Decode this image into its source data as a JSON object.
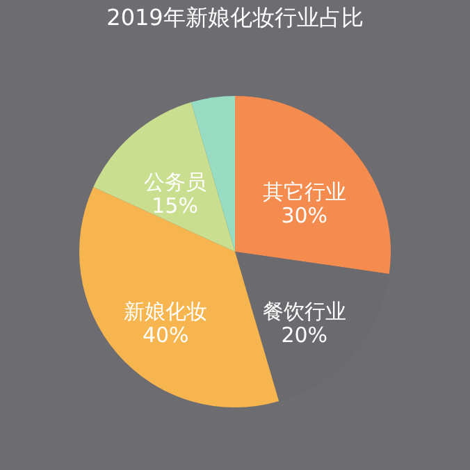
{
  "chart_data": {
    "type": "pie",
    "title": "2019年新娘化妆行业占比",
    "categories": [
      "其它行业",
      "餐饮行业",
      "新娘化妆",
      "公务员",
      null
    ],
    "values": [
      30,
      20,
      40,
      15,
      5
    ],
    "value_labels": [
      "30%",
      "20%",
      "40%",
      "15%",
      null
    ],
    "colors": [
      "#f58c4f",
      "#6b6a6e",
      "#f7b54f",
      "#c9df8f",
      "#98dcc4"
    ],
    "legend": false
  }
}
